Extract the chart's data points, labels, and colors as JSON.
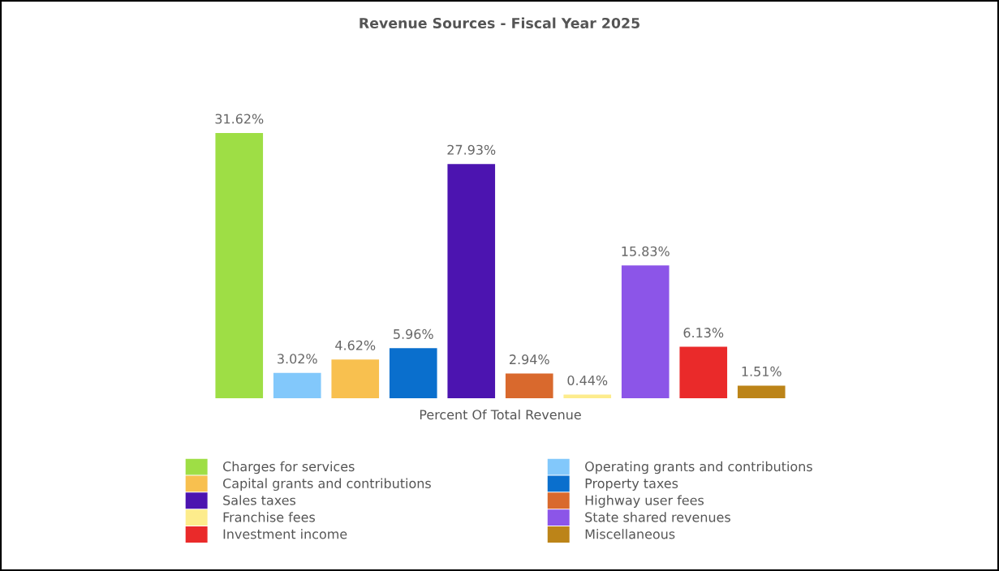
{
  "chart_data": {
    "type": "bar",
    "title": "Revenue Sources - Fiscal Year 2025",
    "xlabel": "Percent Of Total Revenue",
    "categories": [
      null
    ],
    "series": [
      {
        "name": "Charges for services",
        "color": "#9ede45",
        "values": [
          31.62
        ],
        "value_labels": [
          "31.62%"
        ]
      },
      {
        "name": "Operating grants and contributions",
        "color": "#82c8fb",
        "values": [
          3.02
        ],
        "value_labels": [
          "3.02%"
        ]
      },
      {
        "name": "Capital grants and contributions",
        "color": "#f8c04f",
        "values": [
          4.62
        ],
        "value_labels": [
          "4.62%"
        ]
      },
      {
        "name": "Property taxes",
        "color": "#0a6fcd",
        "values": [
          5.96
        ],
        "value_labels": [
          "5.96%"
        ]
      },
      {
        "name": "Sales taxes",
        "color": "#4c14b0",
        "values": [
          27.93
        ],
        "value_labels": [
          "27.93%"
        ]
      },
      {
        "name": "Highway user fees",
        "color": "#d9692d",
        "values": [
          2.94
        ],
        "value_labels": [
          "2.94%"
        ]
      },
      {
        "name": "Franchise fees",
        "color": "#fdec8c",
        "values": [
          0.44
        ],
        "value_labels": [
          "0.44%"
        ]
      },
      {
        "name": "State shared revenues",
        "color": "#8c55e8",
        "values": [
          15.83
        ],
        "value_labels": [
          "15.83%"
        ]
      },
      {
        "name": "Investment income",
        "color": "#ea2a2a",
        "values": [
          6.13
        ],
        "value_labels": [
          "6.13%"
        ]
      },
      {
        "name": "Miscellaneous",
        "color": "#bc8418",
        "values": [
          1.51
        ],
        "value_labels": [
          "1.51%"
        ]
      }
    ],
    "legend": "bottom"
  }
}
